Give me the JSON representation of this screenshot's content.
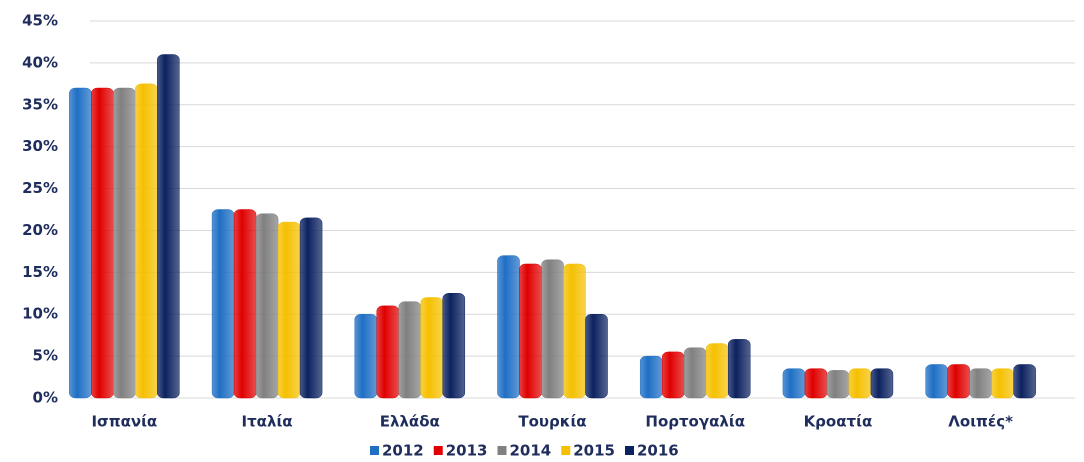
{
  "chart_data": {
    "type": "bar",
    "categories": [
      "Ισπανία",
      "Ιταλία",
      "Ελλάδα",
      "Τουρκία",
      "Πορτογαλία",
      "Κροατία",
      "Λοιπές*"
    ],
    "series": [
      {
        "name": "2012",
        "color": "#1f6fc5",
        "values": [
          37,
          22.5,
          10,
          17,
          5,
          3.5,
          4
        ]
      },
      {
        "name": "2013",
        "color": "#e00000",
        "values": [
          37,
          22.5,
          11,
          16,
          5.5,
          3.5,
          4
        ]
      },
      {
        "name": "2014",
        "color": "#808080",
        "values": [
          37,
          22,
          11.5,
          16.5,
          6,
          3.3,
          3.5
        ]
      },
      {
        "name": "2015",
        "color": "#f5c000",
        "values": [
          37.5,
          21,
          12,
          16,
          6.5,
          3.5,
          3.5
        ]
      },
      {
        "name": "2016",
        "color": "#0c2260",
        "values": [
          41,
          21.5,
          12.5,
          10,
          7,
          3.5,
          4
        ]
      }
    ],
    "ylim": [
      0,
      45
    ],
    "yticks": [
      {
        "value": 0,
        "label": "0%"
      },
      {
        "value": 5,
        "label": "5%"
      },
      {
        "value": 10,
        "label": "10%"
      },
      {
        "value": 15,
        "label": "15%"
      },
      {
        "value": 20,
        "label": "20%"
      },
      {
        "value": 25,
        "label": "25%"
      },
      {
        "value": 30,
        "label": "30%"
      },
      {
        "value": 35,
        "label": "35%"
      },
      {
        "value": 40,
        "label": "40%"
      },
      {
        "value": 45,
        "label": "45%"
      }
    ],
    "grid": true,
    "legend": "bottom"
  }
}
